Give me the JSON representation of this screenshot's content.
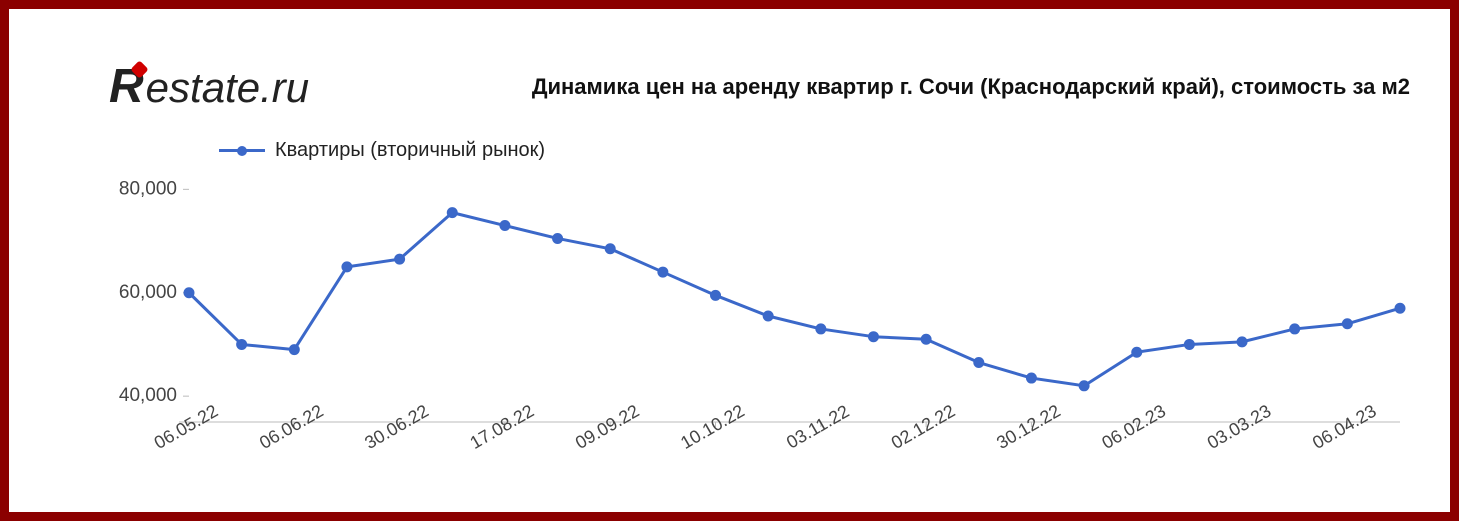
{
  "logo": {
    "text_head": "R",
    "text_rest": "estate.ru",
    "accent_color": "#d00000",
    "text_color": "#222222"
  },
  "title": "Динамика цен на аренду квартир г. Сочи (Краснодарский край), стоимость за м2",
  "chart": {
    "type": "line",
    "legend": {
      "label": "Квартиры (вторичный рынок)",
      "color": "#3b68c9"
    },
    "ylim": [
      35000,
      82000
    ],
    "yticks": [
      40000,
      60000,
      80000
    ],
    "ytick_labels": [
      "40,000",
      "60,000",
      "80,000"
    ],
    "x_categories": [
      "06.05.22",
      "",
      "06.06.22",
      "",
      "30.06.22",
      "",
      "17.08.22",
      "",
      "09.09.22",
      "",
      "10.10.22",
      "",
      "03.11.22",
      "",
      "02.12.22",
      "",
      "30.12.22",
      "",
      "06.02.23",
      "",
      "03.03.23",
      "",
      "06.04.23",
      ""
    ],
    "x_show_every": 2,
    "xtick_rotation": -30,
    "series": [
      {
        "name": "Квартиры (вторичный рынок)",
        "color": "#3b68c9",
        "line_width": 3,
        "marker_radius": 5,
        "values": [
          60000,
          50000,
          49000,
          65000,
          66500,
          75500,
          73000,
          70500,
          68500,
          64000,
          59500,
          55500,
          53000,
          51500,
          51000,
          46500,
          43500,
          42000,
          48500,
          50000,
          50500,
          53000,
          54000,
          57000
        ]
      }
    ],
    "axis_color": "#bbbbbb",
    "background_color": "#ffffff",
    "label_fontsize": 19,
    "frame_border_color": "#8b0000"
  }
}
